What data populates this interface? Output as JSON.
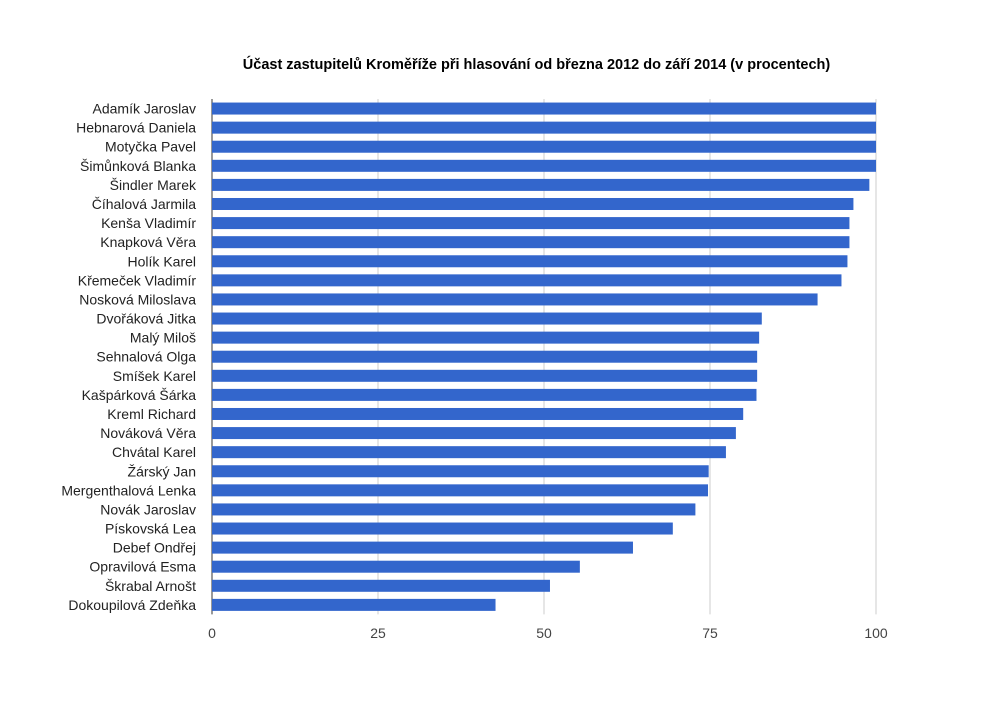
{
  "chart_data": {
    "type": "bar",
    "orientation": "horizontal",
    "title": "Účast zastupitelů Kroměříže při hlasování od března 2012 do září 2014 (v procentech)",
    "xlabel": "",
    "ylabel": "",
    "xlim": [
      0,
      100
    ],
    "ticks": [
      "0",
      "25",
      "50",
      "75",
      "100"
    ],
    "tick_values": [
      0,
      25,
      50,
      75,
      100
    ],
    "grid": true,
    "legend": "none",
    "bar_color": "#3366cc",
    "categories": [
      "Adamík Jaroslav",
      "Hebnarová Daniela",
      "Motyčka Pavel",
      "Šimůnková Blanka",
      "Šindler Marek",
      "Číhalová Jarmila",
      "Kenša Vladimír",
      "Knapková Věra",
      "Holík Karel",
      "Křemeček Vladimír",
      "Nosková Miloslava",
      "Dvořáková Jitka",
      "Malý Miloš",
      "Sehnalová Olga",
      "Smíšek Karel",
      "Kašpárková Šárka",
      "Kreml Richard",
      "Nováková Věra",
      "Chvátal Karel",
      "Žárský Jan",
      "Mergenthalová Lenka",
      "Novák Jaroslav",
      "Pískovská Lea",
      "Debef Ondřej",
      "Opravilová Esma",
      "Škrabal Arnošt",
      "Dokoupilová Zdeňka"
    ],
    "values": [
      100,
      100,
      100,
      100,
      99,
      96.6,
      96,
      96,
      95.7,
      94.8,
      91.2,
      82.8,
      82.4,
      82.1,
      82.1,
      82,
      80,
      78.9,
      77.4,
      74.8,
      74.7,
      72.8,
      69.4,
      63.4,
      55.4,
      50.9,
      42.7
    ]
  }
}
